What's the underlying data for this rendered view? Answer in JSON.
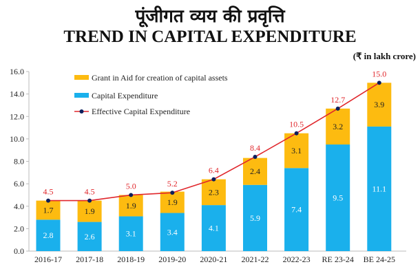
{
  "title_hindi": "पूंजीगत व्यय की प्रवृत्ति",
  "title": "TREND IN CAPITAL EXPENDITURE",
  "unit": "(₹ in lakh crore)",
  "chart_data": {
    "type": "bar",
    "stacked": true,
    "categories": [
      "2016-17",
      "2017-18",
      "2018-19",
      "2019-20",
      "2020-21",
      "2021-22",
      "2022-23",
      "RE 23-24",
      "BE 24-25"
    ],
    "series": [
      {
        "name": "Capital Expenditure",
        "kind": "bar",
        "color": "#1ab0ec",
        "values": [
          2.8,
          2.6,
          3.1,
          3.4,
          4.1,
          5.9,
          7.4,
          9.5,
          11.1
        ]
      },
      {
        "name": "Grant in Aid for creation of capital assets",
        "kind": "bar",
        "color": "#fdbb10",
        "values": [
          1.7,
          1.9,
          1.9,
          1.9,
          2.3,
          2.4,
          3.1,
          3.2,
          3.9
        ]
      },
      {
        "name": "Effective Capital Expenditure",
        "kind": "line",
        "color": "#e0262b",
        "marker_color": "#0d1f5c",
        "values": [
          4.5,
          4.5,
          5.0,
          5.2,
          6.4,
          8.4,
          10.5,
          12.7,
          15.0
        ]
      }
    ],
    "ylim": [
      0,
      16
    ],
    "yticks": [
      "0.0",
      "2.0",
      "4.0",
      "6.0",
      "8.0",
      "10.0",
      "12.0",
      "14.0",
      "16.0"
    ],
    "grid": false,
    "legend_position": "top-left",
    "legend": [
      "Grant in Aid for creation of capital assets",
      "Capital Expenditure",
      "Effective Capital Expenditure"
    ]
  }
}
